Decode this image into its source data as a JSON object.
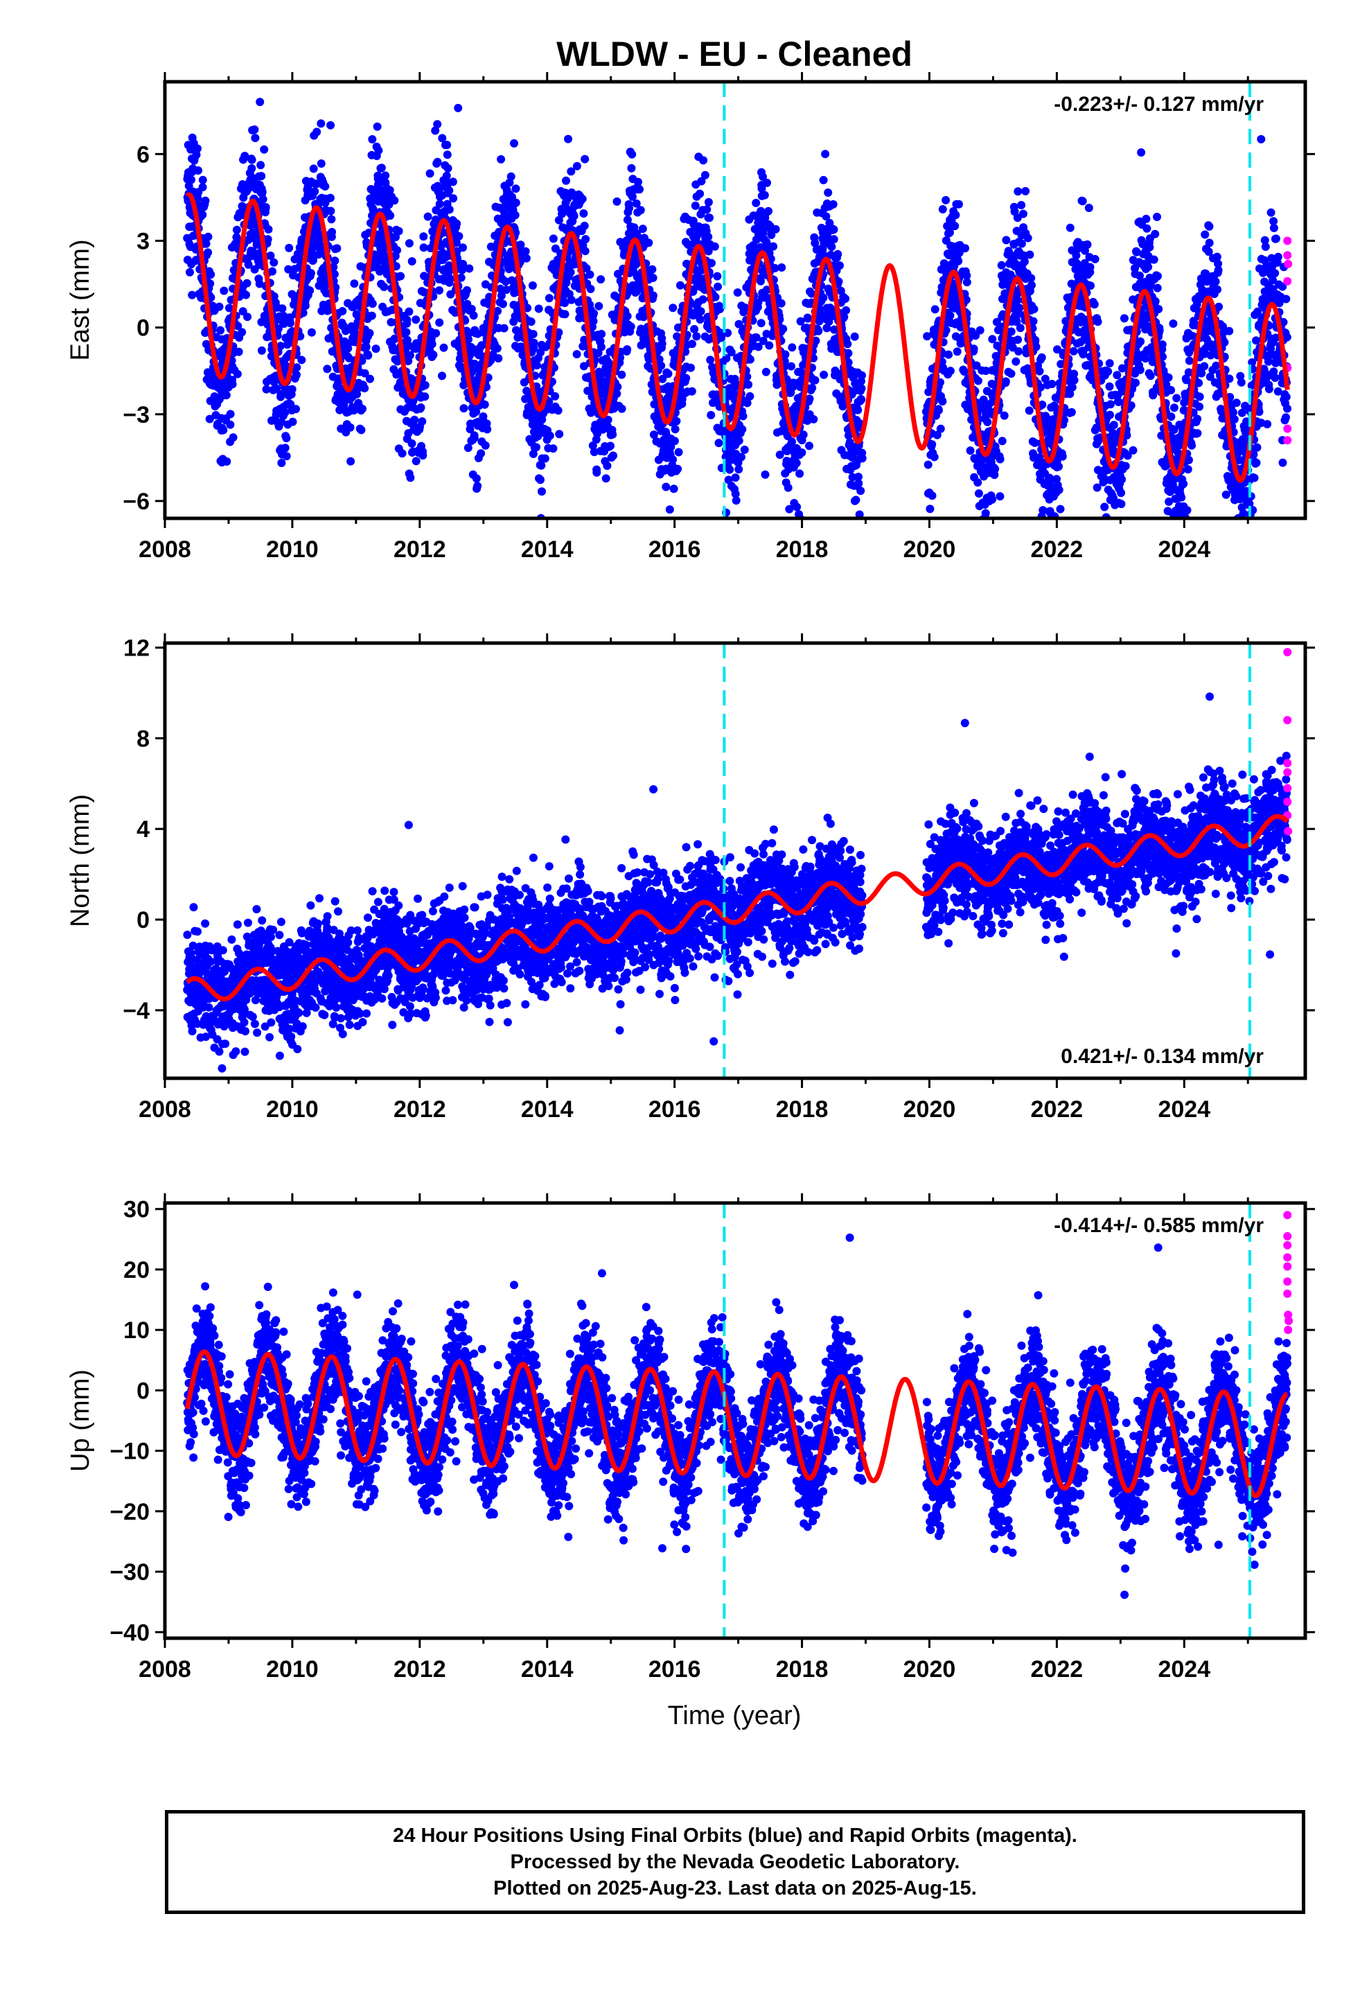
{
  "title": "WLDW  - EU - Cleaned",
  "colors": {
    "final": "#0000ff",
    "rapid": "#ff00ff",
    "model": "#ff0000",
    "event_line": "#00e5ee"
  },
  "chart_data": [
    {
      "type": "scatter",
      "name": "east",
      "ylabel": "East (mm)",
      "xlabel": "",
      "rate_label": "-0.223+/- 0.127 mm/yr",
      "rate_position": "top-right",
      "xlim": [
        2008,
        2025.9
      ],
      "ylim": [
        -6.6,
        8.5
      ],
      "xticks": [
        "2008",
        "2010",
        "2012",
        "2014",
        "2016",
        "2018",
        "2020",
        "2022",
        "2024"
      ],
      "yticks": [
        "-6",
        "-3",
        "0",
        "3",
        "6"
      ],
      "rate": -0.223,
      "model": {
        "amplitude": 3.1,
        "phase_peak": 0.38,
        "offset": 1.5,
        "start": 2008.35,
        "end": 2025.62
      },
      "noise": 1.4,
      "gap": [
        2018.95,
        2019.95
      ],
      "event_lines": [
        2016.78,
        2025.03
      ],
      "rapid_points": [
        [
          2025.62,
          3.0
        ],
        [
          2025.62,
          2.5
        ],
        [
          2025.62,
          1.6
        ],
        [
          2025.62,
          -1.4
        ],
        [
          2025.62,
          -3.5
        ],
        [
          2025.62,
          -3.9
        ],
        [
          2025.63,
          2.2
        ]
      ]
    },
    {
      "type": "scatter",
      "name": "north",
      "ylabel": "North (mm)",
      "xlabel": "",
      "rate_label": "0.421+/- 0.134 mm/yr",
      "rate_position": "bottom-right",
      "xlim": [
        2008,
        2025.9
      ],
      "ylim": [
        -7,
        12.2
      ],
      "xticks": [
        "2008",
        "2010",
        "2012",
        "2014",
        "2016",
        "2018",
        "2020",
        "2022",
        "2024"
      ],
      "yticks": [
        "-4",
        "0",
        "4",
        "8",
        "12"
      ],
      "rate": 0.421,
      "model": {
        "amplitude": 0.55,
        "phase_peak": 0.45,
        "offset": -3.2,
        "start": 2008.35,
        "end": 2025.62
      },
      "noise": 1.1,
      "gap": [
        2018.95,
        2019.95
      ],
      "event_lines": [
        2016.78,
        2025.03
      ],
      "rapid_points": [
        [
          2025.62,
          11.8
        ],
        [
          2025.62,
          8.8
        ],
        [
          2025.62,
          6.9
        ],
        [
          2025.62,
          6.5
        ],
        [
          2025.62,
          5.8
        ],
        [
          2025.62,
          5.2
        ],
        [
          2025.62,
          4.6
        ],
        [
          2025.63,
          3.9
        ]
      ]
    },
    {
      "type": "scatter",
      "name": "up",
      "ylabel": "Up (mm)",
      "xlabel": "Time (year)",
      "rate_label": "-0.414+/- 0.585 mm/yr",
      "rate_position": "top-right",
      "xlim": [
        2008,
        2025.9
      ],
      "ylim": [
        -41,
        31
      ],
      "xticks": [
        "2008",
        "2010",
        "2012",
        "2014",
        "2016",
        "2018",
        "2020",
        "2022",
        "2024"
      ],
      "yticks": [
        "-40",
        "-30",
        "-20",
        "-10",
        "0",
        "10",
        "20",
        "30"
      ],
      "rate": -0.414,
      "model": {
        "amplitude": 8.5,
        "phase_peak": 0.62,
        "offset": -2.0,
        "start": 2008.35,
        "end": 2025.62
      },
      "noise": 4.5,
      "gap": [
        2018.95,
        2019.95
      ],
      "event_lines": [
        2016.78,
        2025.03
      ],
      "rapid_points": [
        [
          2025.62,
          29.0
        ],
        [
          2025.62,
          25.5
        ],
        [
          2025.62,
          24.0
        ],
        [
          2025.62,
          22.0
        ],
        [
          2025.62,
          20.5
        ],
        [
          2025.62,
          18.0
        ],
        [
          2025.62,
          16.0
        ],
        [
          2025.63,
          12.5
        ],
        [
          2025.63,
          10.0
        ],
        [
          2025.64,
          11.5
        ]
      ]
    }
  ],
  "footer": {
    "line1": "24 Hour Positions Using Final Orbits (blue) and Rapid Orbits (magenta).",
    "line2": "Processed by the Nevada Geodetic Laboratory.",
    "line3": "Plotted on 2025-Aug-23. Last data on 2025-Aug-15."
  }
}
